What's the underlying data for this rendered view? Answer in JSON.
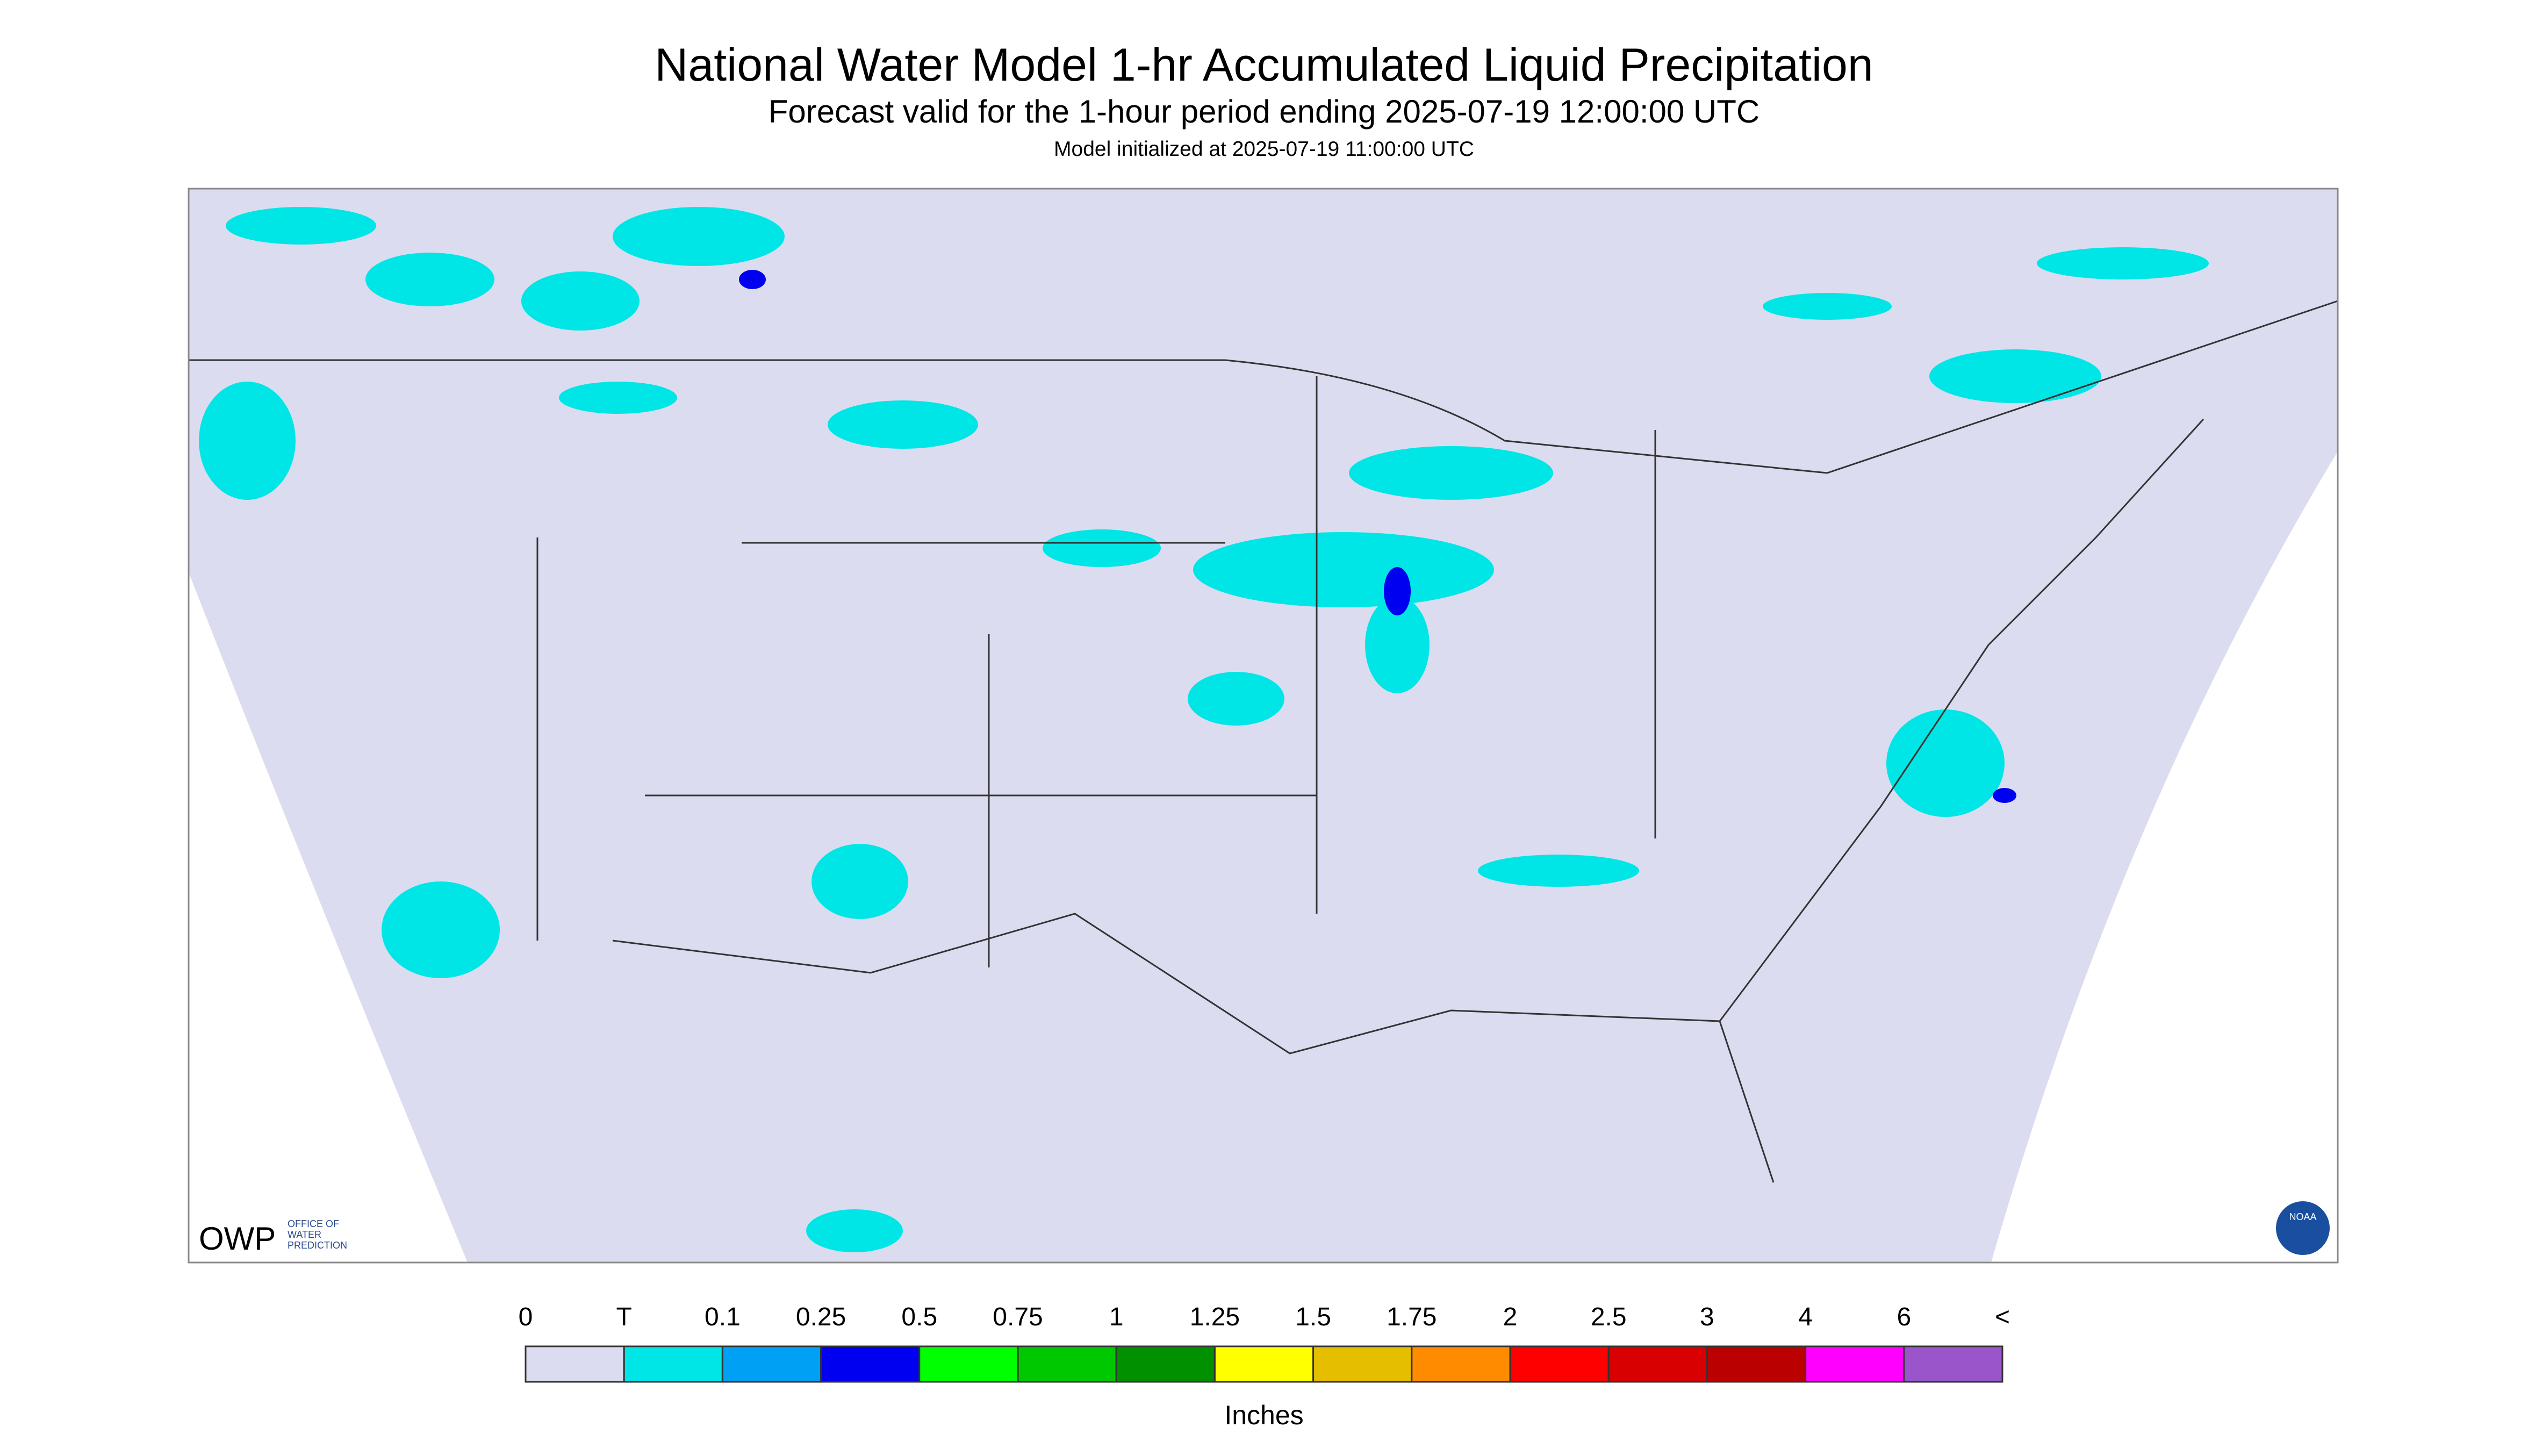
{
  "header": {
    "title": "National Water Model 1-hr Accumulated Liquid Precipitation",
    "subtitle": "Forecast valid for the 1-hour period ending 2025-07-19 12:00:00 UTC",
    "init": "Model initialized at 2025-07-19 11:00:00 UTC"
  },
  "legend": {
    "labels": [
      "0",
      "T",
      "0.1",
      "0.25",
      "0.5",
      "0.75",
      "1",
      "1.25",
      "1.5",
      "1.75",
      "2",
      "2.5",
      "3",
      "4",
      "6",
      "<"
    ],
    "colors": [
      "#dcdcf0",
      "#00e6e6",
      "#00a0f5",
      "#0000f0",
      "#00ff00",
      "#00c800",
      "#009000",
      "#ffff00",
      "#e6be00",
      "#ff8c00",
      "#ff0000",
      "#d80000",
      "#bb0000",
      "#ff00ff",
      "#9955c9"
    ],
    "unit": "Inches"
  },
  "logos": {
    "owp": "OWP",
    "owp_text": [
      "OFFICE OF",
      "WATER",
      "PREDICTION"
    ],
    "noaa": "NOAA"
  }
}
